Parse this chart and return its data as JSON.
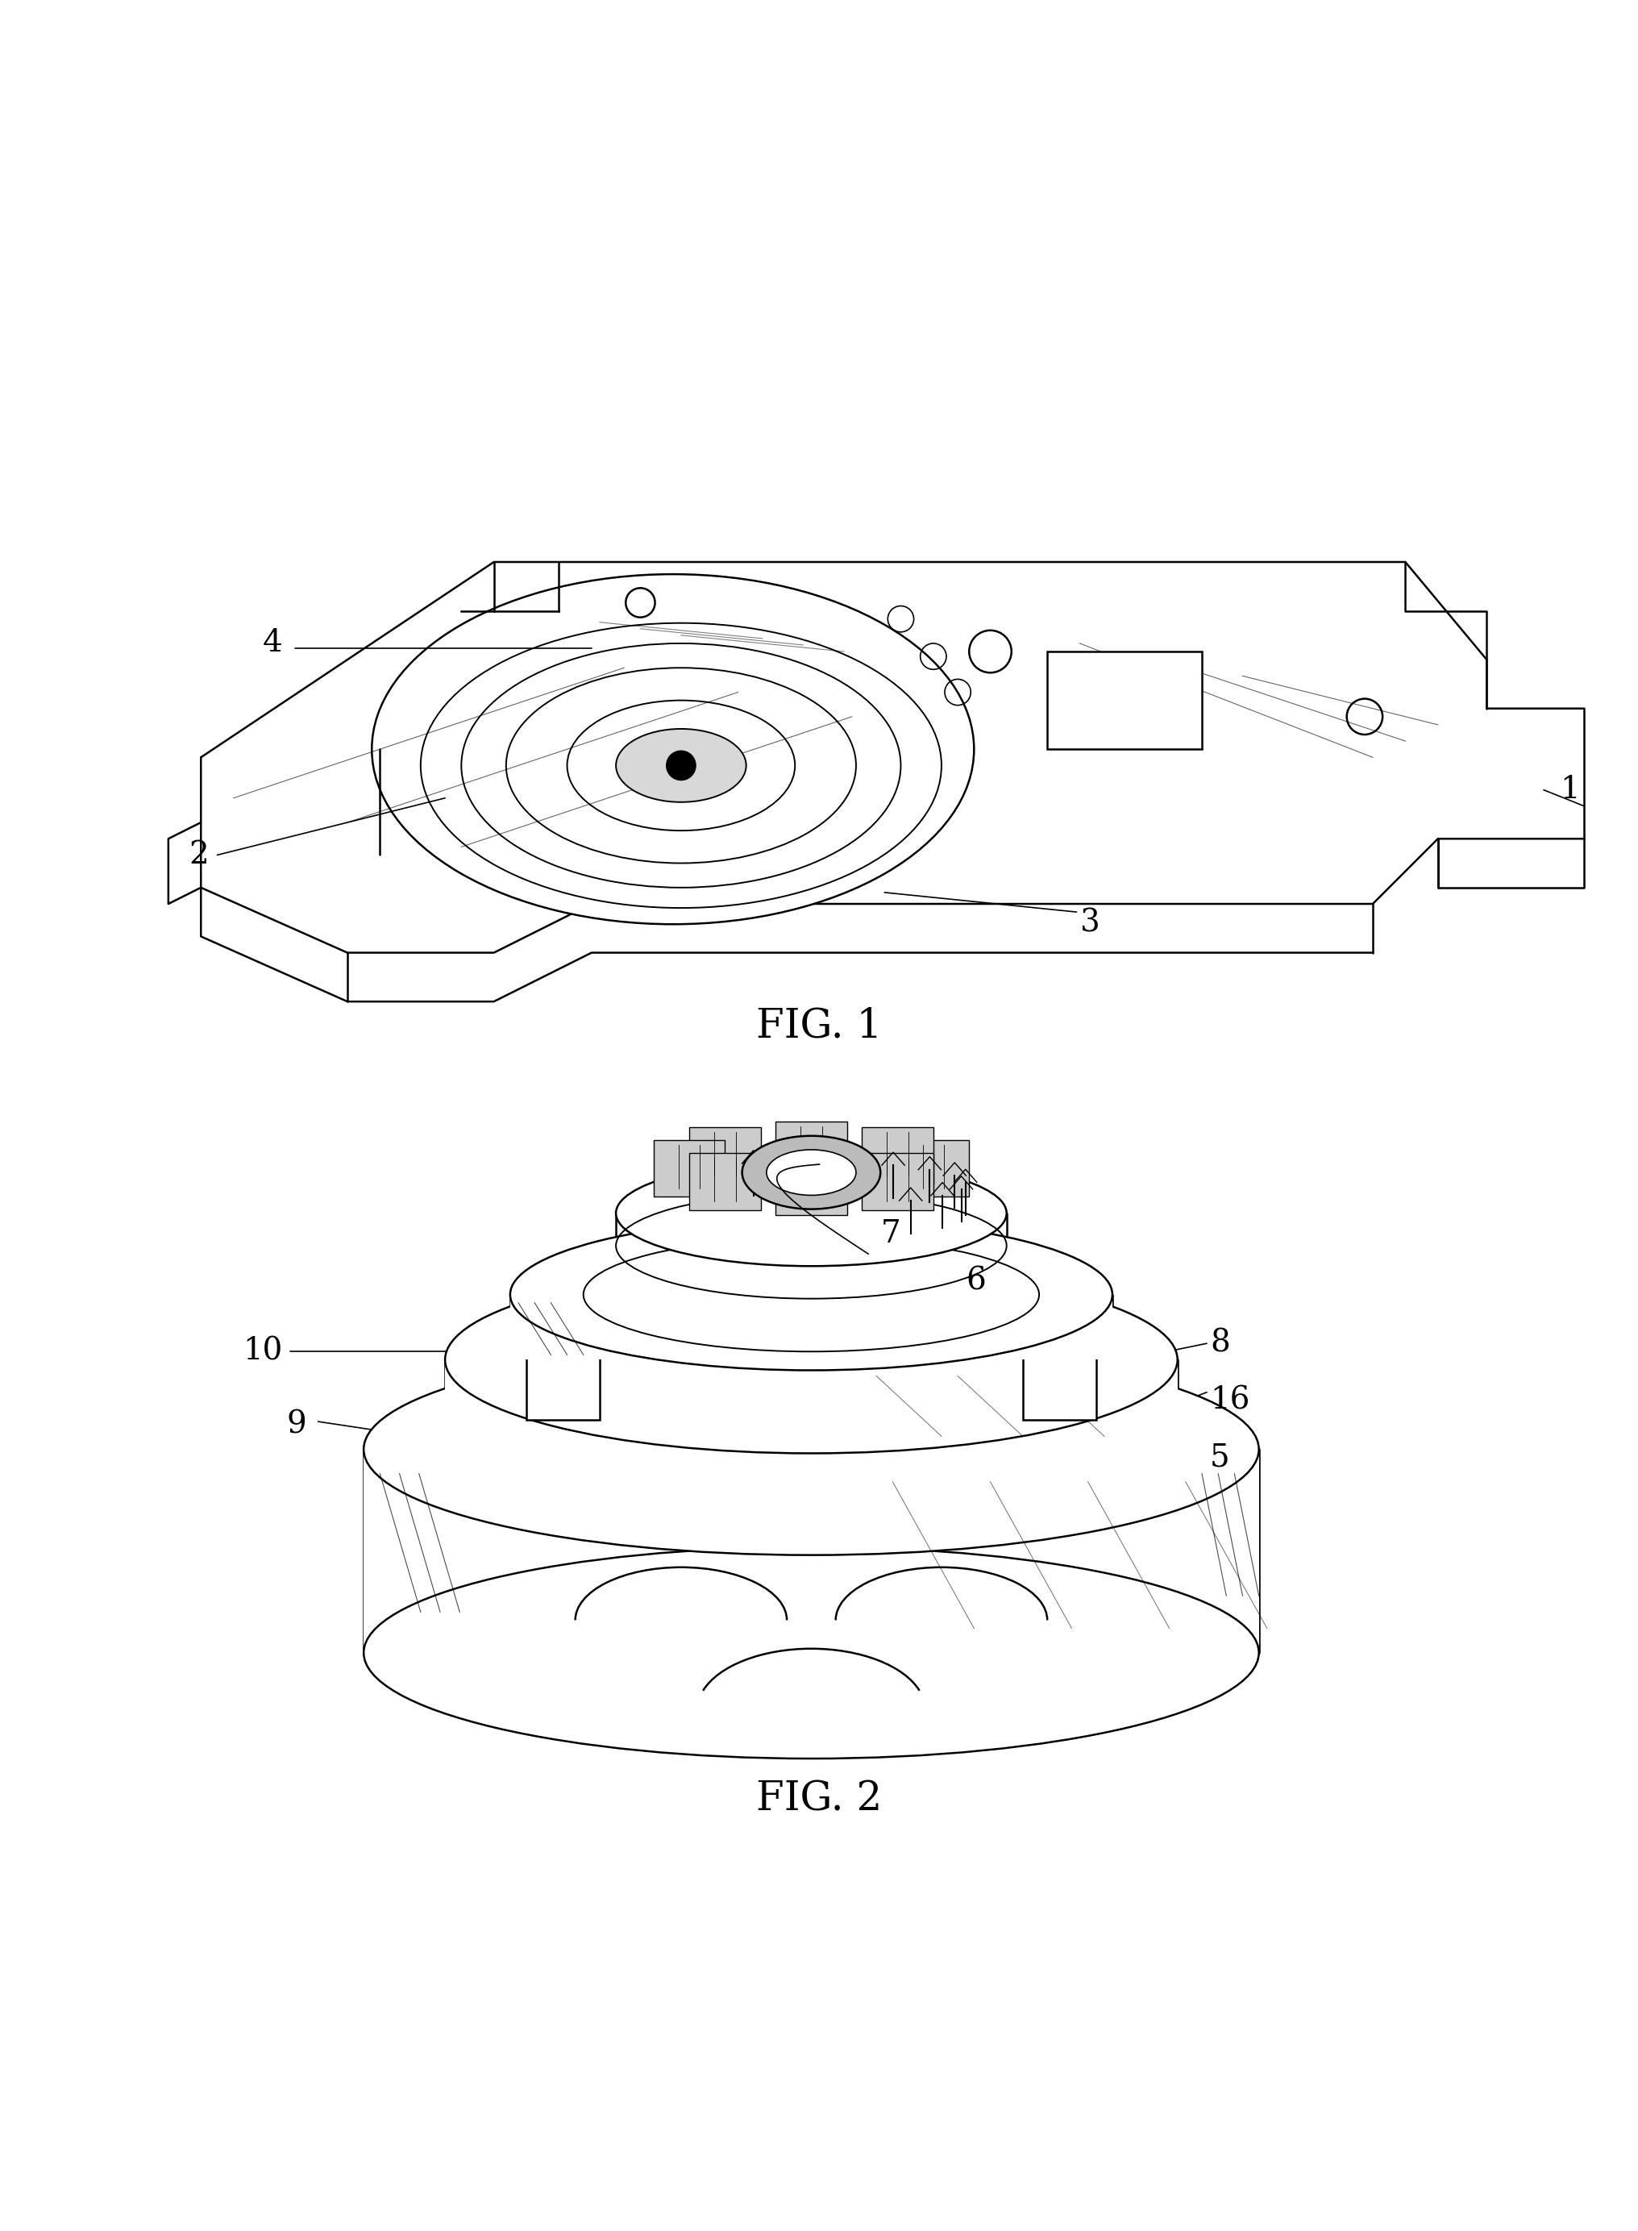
{
  "fig1_label": "FIG. 1",
  "fig2_label": "FIG. 2",
  "background_color": "#ffffff",
  "line_color": "#000000",
  "font_size_label": 28,
  "font_size_fig": 36
}
